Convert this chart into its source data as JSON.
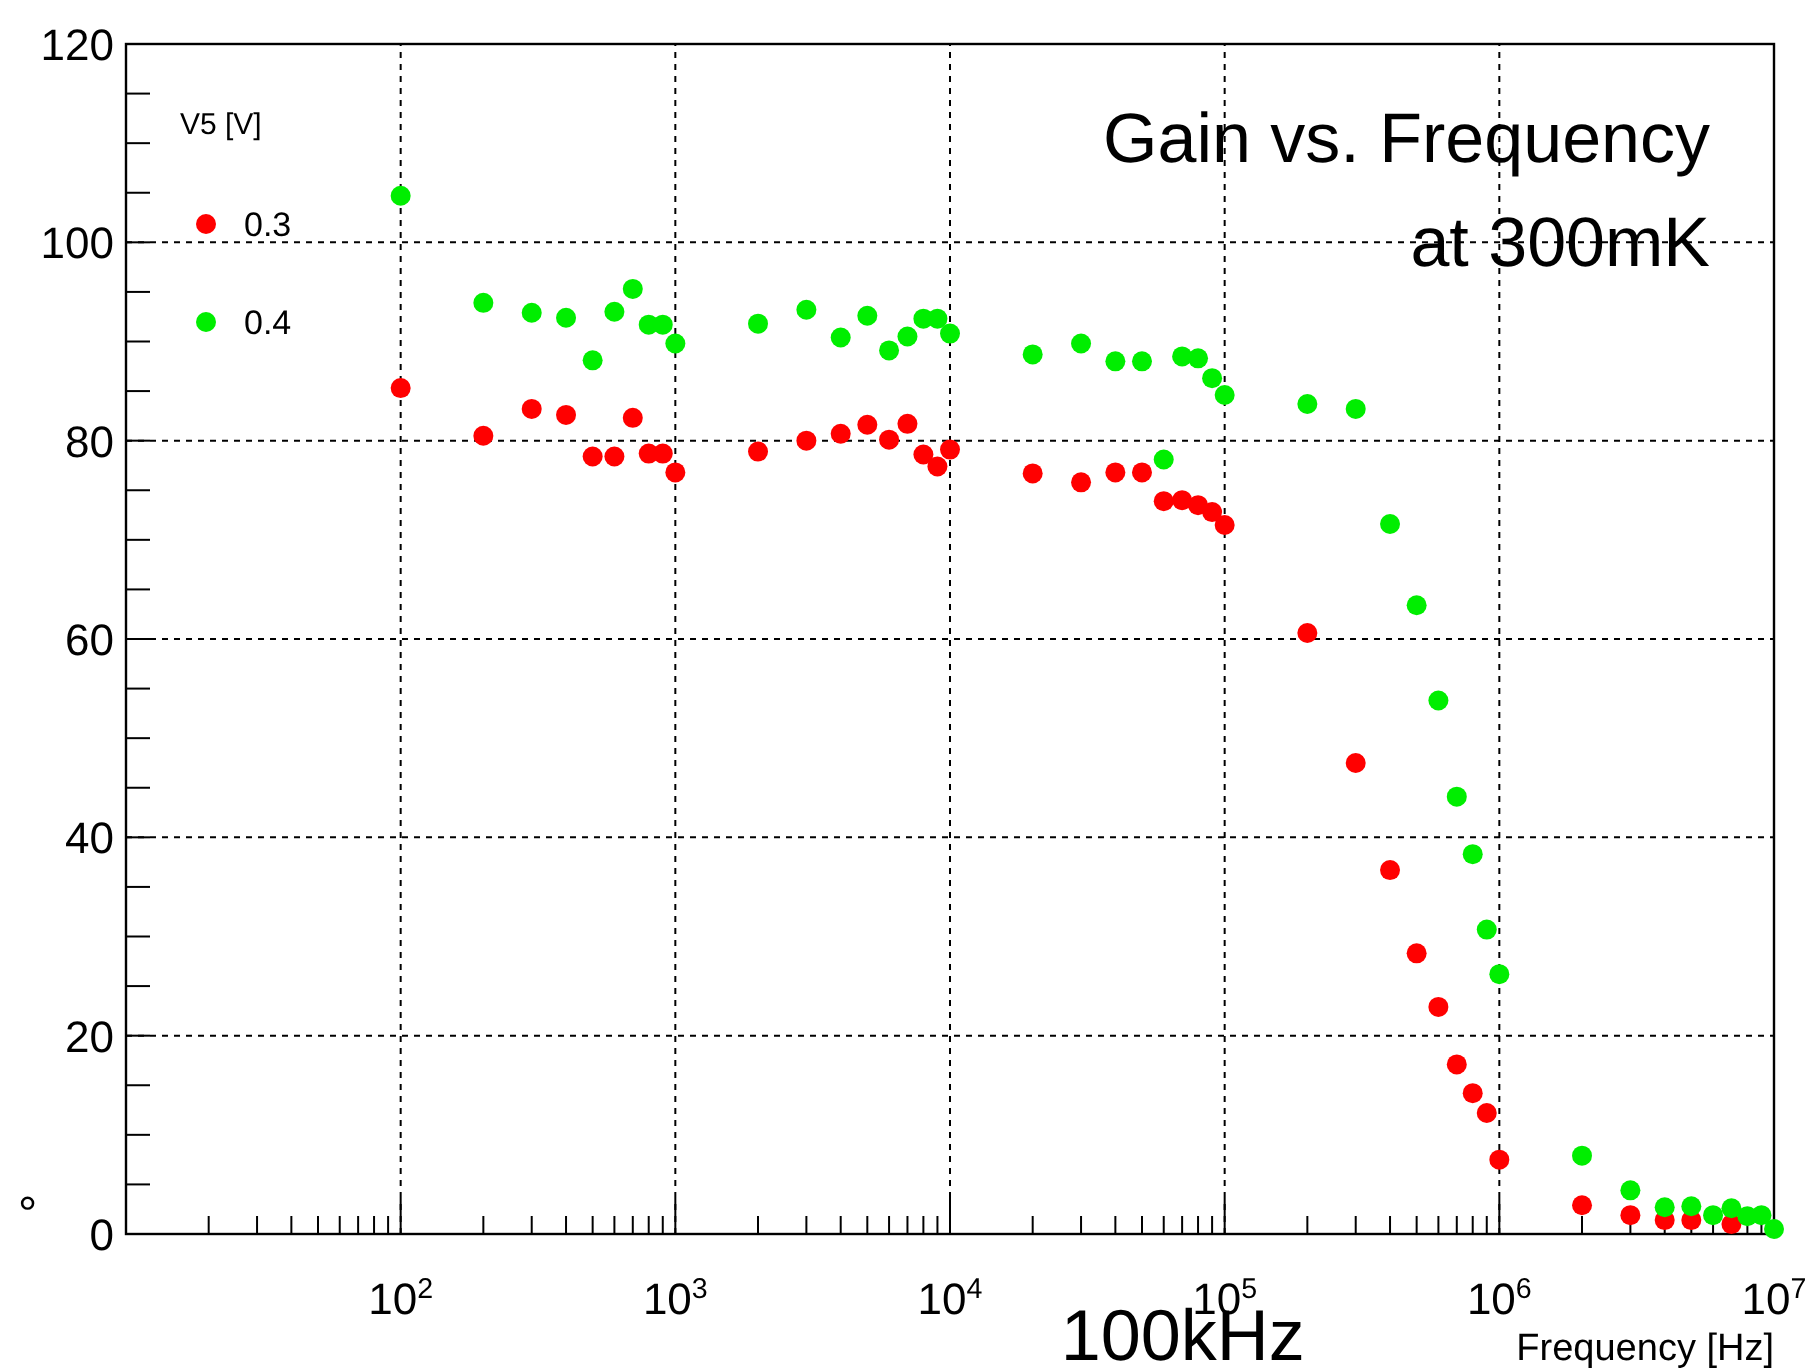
{
  "chart_data": {
    "type": "scatter",
    "title": "Gain vs. Frequency\nat 300mK",
    "xlabel": "Frequency [Hz]",
    "legend_title": "V5 [V]",
    "legend": "top left",
    "marker": "circle",
    "log": "x",
    "grid": true,
    "annotations": [
      "100kHz",
      "°"
    ],
    "xlim": [
      10,
      10000000
    ],
    "ylim": [
      0,
      120
    ],
    "xticks": [
      {
        "value": 20,
        "label": null
      },
      {
        "value": 30,
        "label": null
      },
      {
        "value": 40,
        "label": null
      },
      {
        "value": 50,
        "label": null
      },
      {
        "value": 60,
        "label": null
      },
      {
        "value": 70,
        "label": null
      },
      {
        "value": 80,
        "label": null
      },
      {
        "value": 90,
        "label": null
      },
      {
        "value": 100,
        "label": "10$^{2}$"
      },
      {
        "value": 200,
        "label": null
      },
      {
        "value": 300,
        "label": null
      },
      {
        "value": 400,
        "label": null
      },
      {
        "value": 500,
        "label": null
      },
      {
        "value": 600,
        "label": null
      },
      {
        "value": 700,
        "label": null
      },
      {
        "value": 800,
        "label": null
      },
      {
        "value": 900,
        "label": null
      },
      {
        "value": 1000,
        "label": "10$^{3}$"
      },
      {
        "value": 2000,
        "label": null
      },
      {
        "value": 3000,
        "label": null
      },
      {
        "value": 4000,
        "label": null
      },
      {
        "value": 5000,
        "label": null
      },
      {
        "value": 6000,
        "label": null
      },
      {
        "value": 7000,
        "label": null
      },
      {
        "value": 8000,
        "label": null
      },
      {
        "value": 9000,
        "label": null
      },
      {
        "value": 10000,
        "label": "10$^{4}$"
      },
      {
        "value": 20000,
        "label": null
      },
      {
        "value": 30000,
        "label": null
      },
      {
        "value": 40000,
        "label": null
      },
      {
        "value": 50000,
        "label": null
      },
      {
        "value": 60000,
        "label": null
      },
      {
        "value": 70000,
        "label": null
      },
      {
        "value": 80000,
        "label": null
      },
      {
        "value": 90000,
        "label": null
      },
      {
        "value": 100000,
        "label": "10$^{5}$"
      },
      {
        "value": 200000,
        "label": null
      },
      {
        "value": 300000,
        "label": null
      },
      {
        "value": 400000,
        "label": null
      },
      {
        "value": 500000,
        "label": null
      },
      {
        "value": 600000,
        "label": null
      },
      {
        "value": 700000,
        "label": null
      },
      {
        "value": 800000,
        "label": null
      },
      {
        "value": 900000,
        "label": null
      },
      {
        "value": 1000000,
        "label": "10$^{6}$"
      },
      {
        "value": 2000000,
        "label": null
      },
      {
        "value": 3000000,
        "label": null
      },
      {
        "value": 4000000,
        "label": null
      },
      {
        "value": 5000000,
        "label": null
      },
      {
        "value": 6000000,
        "label": null
      },
      {
        "value": 7000000,
        "label": null
      },
      {
        "value": 8000000,
        "label": null
      },
      {
        "value": 9000000,
        "label": null
      },
      {
        "value": 10000000,
        "label": "10$^{7}$"
      }
    ],
    "yticks": [
      0,
      {
        "value": 5,
        "label": null
      },
      {
        "value": 10,
        "label": null
      },
      {
        "value": 15,
        "label": null
      },
      20,
      {
        "value": 25,
        "label": null
      },
      {
        "value": 30,
        "label": null
      },
      {
        "value": 35,
        "label": null
      },
      40,
      {
        "value": 45,
        "label": null
      },
      {
        "value": 50,
        "label": null
      },
      {
        "value": 55,
        "label": null
      },
      60,
      {
        "value": 65,
        "label": null
      },
      {
        "value": 70,
        "label": null
      },
      {
        "value": 75,
        "label": null
      },
      80,
      {
        "value": 85,
        "label": null
      },
      {
        "value": 90,
        "label": null
      },
      {
        "value": 95,
        "label": null
      },
      100,
      {
        "value": 105,
        "label": null
      },
      {
        "value": 110,
        "label": null
      },
      {
        "value": 115,
        "label": null
      },
      120
    ],
    "x": [
      100,
      200,
      300,
      400,
      500,
      600,
      700,
      800,
      900,
      1000,
      2000,
      3000,
      4000,
      5000,
      6000,
      7000,
      8000,
      9000,
      10000,
      20000,
      30000,
      40000,
      50000,
      60000,
      70000,
      80000,
      90000,
      100000,
      200000,
      300000,
      400000,
      500000,
      600000,
      700000,
      800000,
      900000,
      1000000,
      2000000,
      3000000,
      4000000,
      5000000,
      6000000,
      7000000,
      8000000,
      9000000,
      10000000
    ],
    "series": [
      {
        "name": "0.3",
        "color": "#ff0000",
        "values": [
          85.3,
          80.5,
          83.2,
          82.6,
          78.4,
          78.4,
          82.3,
          78.7,
          78.7,
          76.8,
          78.9,
          80.0,
          80.7,
          81.6,
          80.1,
          81.7,
          78.6,
          77.4,
          79.1,
          76.7,
          75.8,
          76.8,
          76.8,
          73.9,
          74.0,
          73.5,
          72.8,
          71.5,
          60.6,
          47.5,
          36.7,
          28.3,
          22.9,
          17.1,
          14.2,
          12.2,
          7.5,
          2.9,
          1.9,
          1.4,
          1.4,
          null,
          1.0,
          null,
          null,
          null
        ]
      },
      {
        "name": "0.4",
        "color": "#00ee00",
        "values": [
          104.7,
          93.9,
          92.9,
          92.4,
          88.1,
          93.0,
          95.3,
          91.7,
          91.7,
          89.8,
          91.8,
          93.2,
          90.4,
          92.6,
          89.1,
          90.5,
          92.3,
          92.3,
          90.8,
          88.7,
          89.8,
          88.0,
          88.0,
          78.1,
          88.5,
          88.3,
          86.3,
          84.6,
          83.7,
          83.2,
          71.6,
          63.4,
          53.8,
          44.1,
          38.3,
          30.7,
          26.2,
          7.9,
          4.4,
          2.7,
          2.8,
          1.9,
          2.6,
          1.8,
          1.9,
          0.5
        ]
      }
    ]
  }
}
